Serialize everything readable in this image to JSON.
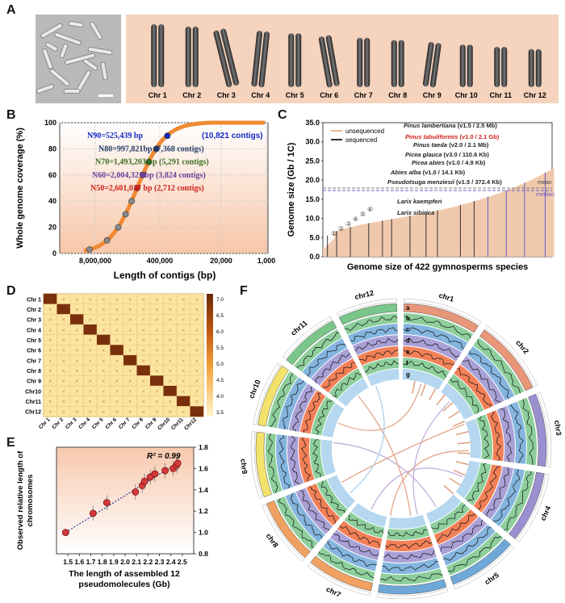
{
  "panel_labels": [
    "A",
    "B",
    "C",
    "D",
    "E",
    "F"
  ],
  "panelA": {
    "chromosomes": [
      "Chr 1",
      "Chr 2",
      "Chr 3",
      "Chr 4",
      "Chr 5",
      "Chr 6",
      "Chr 7",
      "Chr 8",
      "Chr 9",
      "Chr 10",
      "Chr 11",
      "Chr 12"
    ],
    "bg_color": "#f6d3bd"
  },
  "panelB": {
    "chart_data": {
      "type": "line",
      "ylabel": "Whole genome coverage (%)",
      "xlabel": "Length of contigs (bp)",
      "yticks": [
        "0",
        "20",
        "40",
        "60",
        "80",
        "100"
      ],
      "xticks": [
        "8,000,000",
        "400,000",
        "20,000",
        "1,000"
      ],
      "x_scale": "log (reversed)",
      "annotations": [
        {
          "text": "N90=525,439 bp",
          "extra": "(10,821 contigs)",
          "color": "#1428c8"
        },
        {
          "text": "N80=997,821bp (7,368 contigs)",
          "color": "#243a66"
        },
        {
          "text": "N70=1,493,203 bp (5,291 contigs)",
          "color": "#3a6b1e"
        },
        {
          "text": "N60=2,004,321 bp (3,824 contigs)",
          "color": "#6a3e9a"
        },
        {
          "text": "N50=2,601,037 bp (2,712 contigs)",
          "color": "#d0201c"
        }
      ],
      "curve_color": "#f08a34"
    }
  },
  "panelC": {
    "chart_data": {
      "type": "bar",
      "ylabel": "Genome size (Gb / 1C)",
      "xlabel": "Genome size of 422 gymnosperms species",
      "yticks": [
        "0.0",
        "5.0",
        "10.0",
        "15.0",
        "20.0",
        "25.0",
        "30.0",
        "35.0"
      ],
      "ylim": [
        0,
        35
      ],
      "legend": [
        "unsequenced",
        "sequenced"
      ],
      "mean_label": "mean",
      "median_label": "median",
      "numbered_labels": [
        "①",
        "②",
        "③",
        "④",
        "⑤",
        "⑥"
      ],
      "species": [
        {
          "name": "Pinus lambertiana",
          "detail": "(v1.5 / 2.5 Mb)",
          "highlight": false
        },
        {
          "name": "Pinus tabuliformis",
          "detail": "(v1.0 / 2.1 Gb)",
          "highlight": true
        },
        {
          "name": "Pinus taeda",
          "detail": "(v2.0 / 2.1 Mb)",
          "highlight": false
        },
        {
          "name": "Picea glauca",
          "detail": "(v3.0 / 110.6 Kb)",
          "highlight": false
        },
        {
          "name": "Picea abies",
          "detail": "(v1.0 / 4.9 Kb)",
          "highlight": false
        },
        {
          "name": "Abies alba",
          "detail": "(v1.0 / 14.1 Kb)",
          "highlight": false
        },
        {
          "name": "Pseudotsuga menziesii",
          "detail": "(v1.5 / 372.4 Kb)",
          "highlight": false
        },
        {
          "name": "Larix kaempferi",
          "detail": "",
          "highlight": false
        },
        {
          "name": "Larix sibirica",
          "detail": "",
          "highlight": false
        }
      ]
    }
  },
  "panelD": {
    "labels": [
      "Chr 1",
      "Chr 2",
      "Chr 3",
      "Chr 4",
      "Chr 5",
      "Chr 6",
      "Chr 7",
      "Chr 8",
      "Chr 9",
      "Chr10",
      "Chr11",
      "Chr12"
    ],
    "colorbar_ticks": [
      "7.0",
      "6.5",
      "6.0",
      "5.5",
      "5.0",
      "4.5",
      "4.0",
      "3.5"
    ]
  },
  "panelE": {
    "chart_data": {
      "type": "scatter",
      "xlabel": "The length of assembled 12 pseudomolecules (Gb)",
      "ylabel": "Observed relative length of chromosomes",
      "r2": "R² = 0.99",
      "xticks": [
        "1.5",
        "2.0",
        "2.5"
      ],
      "xticks_all": [
        "1.5",
        "1.6",
        "1.7",
        "1.8",
        "1.9",
        "2.0",
        "2.1",
        "2.2",
        "2.3",
        "2.4",
        "2.5"
      ],
      "yticks": [
        "0.8",
        "1.0",
        "1.2",
        "1.4",
        "1.6",
        "1.8"
      ],
      "xlim": [
        1.4,
        2.6
      ],
      "ylim": [
        0.8,
        1.8
      ],
      "points": [
        [
          1.48,
          1.0
        ],
        [
          1.72,
          1.18
        ],
        [
          1.84,
          1.28
        ],
        [
          2.09,
          1.38
        ],
        [
          2.15,
          1.44
        ],
        [
          2.17,
          1.48
        ],
        [
          2.22,
          1.52
        ],
        [
          2.26,
          1.55
        ],
        [
          2.35,
          1.58
        ],
        [
          2.42,
          1.6
        ],
        [
          2.45,
          1.63
        ],
        [
          2.46,
          1.65
        ]
      ]
    }
  },
  "panelF": {
    "chr_labels": [
      "chr1",
      "chr2",
      "chr3",
      "chr4",
      "chr5",
      "chr6",
      "chr7",
      "chr8",
      "chr9",
      "chr10",
      "chr11",
      "chr12"
    ],
    "track_labels": [
      "a",
      "b",
      "c",
      "d",
      "e",
      "f",
      "g"
    ],
    "chr_colors": [
      "#e8967a",
      "#e8967a",
      "#9a8fcf",
      "#9a8fcf",
      "#6fa8d8",
      "#6fa8d8",
      "#f0a060",
      "#f0a060",
      "#f3e36a",
      "#f3e36a",
      "#79c58a",
      "#79c58a"
    ]
  }
}
